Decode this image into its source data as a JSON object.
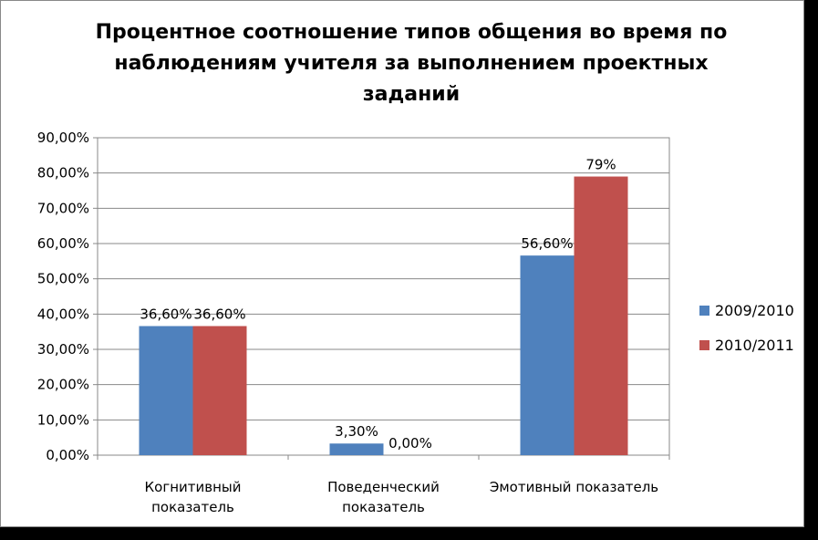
{
  "chart_data": {
    "type": "bar",
    "title": "Процентное соотношение типов общения во время по наблюдениям учителя за выполнением проектных заданий",
    "title_lines": [
      "Процентное соотношение типов общения во время по",
      "наблюдениям учителя за выполнением проектных",
      "заданий"
    ],
    "categories": [
      [
        "Когнитивный",
        "показатель"
      ],
      [
        "Поведенческий",
        "показатель"
      ],
      [
        "Эмотивный показатель"
      ]
    ],
    "series": [
      {
        "name": "2009/2010",
        "color": "#4F81BD",
        "values": [
          36.6,
          3.3,
          56.6
        ],
        "labels": [
          "36,60%",
          "3,30%",
          "56,60%"
        ]
      },
      {
        "name": "2010/2011",
        "color": "#C0504D",
        "values": [
          36.6,
          0.0,
          79.0
        ],
        "labels": [
          "36,60%",
          "0,00%",
          "79%"
        ]
      }
    ],
    "ylim": [
      0,
      90
    ],
    "yticks": [
      0,
      10,
      20,
      30,
      40,
      50,
      60,
      70,
      80,
      90
    ],
    "ytick_labels": [
      "0,00%",
      "10,00%",
      "20,00%",
      "30,00%",
      "40,00%",
      "50,00%",
      "60,00%",
      "70,00%",
      "80,00%",
      "90,00%"
    ],
    "grid": true,
    "legend": "right"
  }
}
